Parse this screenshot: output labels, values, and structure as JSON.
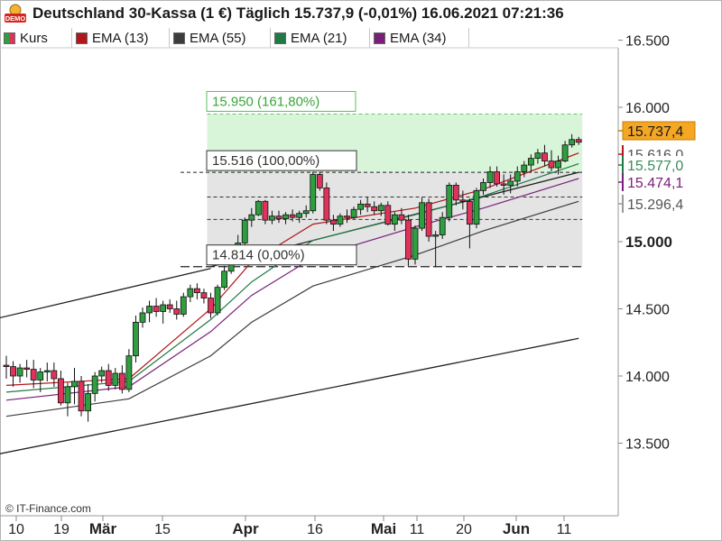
{
  "title": "Deutschland 30-Kassa (1 €) Täglich 15.737,9 (-0,01%) 16.06.2021 07:21:36",
  "badge": "DEMO",
  "copyright": "© IT-Finance.com",
  "colors": {
    "up": "#2e9e3e",
    "down": "#e0325a",
    "ema13": "#b0161a",
    "ema55": "#3c3c3c",
    "ema21": "#1f7a45",
    "ema34": "#7a1f78",
    "target_zone": "#d9f5d9",
    "range_zone": "#e4e4e4"
  },
  "legend": [
    {
      "label": "Kurs",
      "icon": "candle-swatch-icon",
      "color": "#2e9e3e"
    },
    {
      "label": "EMA (13)",
      "color": "#b0161a"
    },
    {
      "label": "EMA (55)",
      "color": "#3c3c3c"
    },
    {
      "label": "EMA (21)",
      "color": "#1f7a45"
    },
    {
      "label": "EMA (34)",
      "color": "#7a1f78"
    }
  ],
  "chart_data": {
    "type": "candlestick",
    "y_axis_ticks": [
      "16.500",
      "16.000",
      "15.000",
      "14.500",
      "14.000",
      "13.500"
    ],
    "y_axis_tick_values": [
      16500,
      16000,
      15000,
      14500,
      14000,
      13500
    ],
    "ylim": [
      13300,
      16700
    ],
    "x_axis_ticks": [
      "10",
      "19",
      "Mär",
      "15",
      "Apr",
      "16",
      "Mai",
      "11",
      "20",
      "Jun",
      "11"
    ],
    "x_axis_bold": [
      false,
      false,
      true,
      false,
      true,
      false,
      true,
      false,
      false,
      true,
      false
    ],
    "candles": [
      {
        "o": 14080,
        "h": 14150,
        "l": 13980,
        "c": 14070
      },
      {
        "o": 14070,
        "h": 14110,
        "l": 13920,
        "c": 14000
      },
      {
        "o": 14000,
        "h": 14090,
        "l": 13950,
        "c": 14060
      },
      {
        "o": 14060,
        "h": 14120,
        "l": 13990,
        "c": 14050
      },
      {
        "o": 14050,
        "h": 14120,
        "l": 13910,
        "c": 13970
      },
      {
        "o": 13970,
        "h": 14060,
        "l": 13880,
        "c": 14030
      },
      {
        "o": 14030,
        "h": 14100,
        "l": 13960,
        "c": 14040
      },
      {
        "o": 14040,
        "h": 14100,
        "l": 13920,
        "c": 13980
      },
      {
        "o": 13980,
        "h": 14040,
        "l": 13780,
        "c": 13800
      },
      {
        "o": 13800,
        "h": 13950,
        "l": 13700,
        "c": 13920
      },
      {
        "o": 13920,
        "h": 14060,
        "l": 13790,
        "c": 13960
      },
      {
        "o": 13960,
        "h": 14000,
        "l": 13700,
        "c": 13740
      },
      {
        "o": 13740,
        "h": 13940,
        "l": 13660,
        "c": 13870
      },
      {
        "o": 13870,
        "h": 14030,
        "l": 13810,
        "c": 14000
      },
      {
        "o": 14000,
        "h": 14070,
        "l": 13950,
        "c": 14040
      },
      {
        "o": 14040,
        "h": 14090,
        "l": 13890,
        "c": 13930
      },
      {
        "o": 13930,
        "h": 14060,
        "l": 13900,
        "c": 14020
      },
      {
        "o": 14020,
        "h": 14080,
        "l": 13870,
        "c": 13900
      },
      {
        "o": 13900,
        "h": 14200,
        "l": 13880,
        "c": 14150
      },
      {
        "o": 14150,
        "h": 14450,
        "l": 14100,
        "c": 14400
      },
      {
        "o": 14400,
        "h": 14510,
        "l": 14360,
        "c": 14470
      },
      {
        "o": 14470,
        "h": 14560,
        "l": 14400,
        "c": 14520
      },
      {
        "o": 14520,
        "h": 14580,
        "l": 14440,
        "c": 14480
      },
      {
        "o": 14480,
        "h": 14560,
        "l": 14390,
        "c": 14530
      },
      {
        "o": 14530,
        "h": 14570,
        "l": 14470,
        "c": 14500
      },
      {
        "o": 14500,
        "h": 14560,
        "l": 14420,
        "c": 14460
      },
      {
        "o": 14460,
        "h": 14620,
        "l": 14440,
        "c": 14590
      },
      {
        "o": 14590,
        "h": 14680,
        "l": 14550,
        "c": 14650
      },
      {
        "o": 14650,
        "h": 14690,
        "l": 14570,
        "c": 14620
      },
      {
        "o": 14620,
        "h": 14650,
        "l": 14540,
        "c": 14580
      },
      {
        "o": 14580,
        "h": 14620,
        "l": 14430,
        "c": 14470
      },
      {
        "o": 14470,
        "h": 14680,
        "l": 14450,
        "c": 14660
      },
      {
        "o": 14660,
        "h": 14820,
        "l": 14640,
        "c": 14780
      },
      {
        "o": 14780,
        "h": 14970,
        "l": 14760,
        "c": 14940
      },
      {
        "o": 14940,
        "h": 15050,
        "l": 14900,
        "c": 14990
      },
      {
        "o": 14990,
        "h": 15180,
        "l": 14970,
        "c": 15160
      },
      {
        "o": 15160,
        "h": 15250,
        "l": 15110,
        "c": 15200
      },
      {
        "o": 15200,
        "h": 15310,
        "l": 15190,
        "c": 15300
      },
      {
        "o": 15300,
        "h": 15310,
        "l": 15130,
        "c": 15160
      },
      {
        "o": 15160,
        "h": 15230,
        "l": 15130,
        "c": 15190
      },
      {
        "o": 15190,
        "h": 15230,
        "l": 15140,
        "c": 15170
      },
      {
        "o": 15170,
        "h": 15220,
        "l": 15130,
        "c": 15200
      },
      {
        "o": 15200,
        "h": 15240,
        "l": 15150,
        "c": 15180
      },
      {
        "o": 15180,
        "h": 15230,
        "l": 15140,
        "c": 15210
      },
      {
        "o": 15210,
        "h": 15270,
        "l": 15180,
        "c": 15230
      },
      {
        "o": 15230,
        "h": 15520,
        "l": 15210,
        "c": 15500
      },
      {
        "o": 15500,
        "h": 15520,
        "l": 15380,
        "c": 15400
      },
      {
        "o": 15400,
        "h": 15440,
        "l": 15130,
        "c": 15160
      },
      {
        "o": 15160,
        "h": 15200,
        "l": 15080,
        "c": 15130
      },
      {
        "o": 15130,
        "h": 15210,
        "l": 15110,
        "c": 15190
      },
      {
        "o": 15190,
        "h": 15240,
        "l": 15140,
        "c": 15180
      },
      {
        "o": 15180,
        "h": 15260,
        "l": 15170,
        "c": 15240
      },
      {
        "o": 15240,
        "h": 15310,
        "l": 15200,
        "c": 15280
      },
      {
        "o": 15280,
        "h": 15330,
        "l": 15220,
        "c": 15260
      },
      {
        "o": 15260,
        "h": 15300,
        "l": 15200,
        "c": 15230
      },
      {
        "o": 15230,
        "h": 15290,
        "l": 15190,
        "c": 15270
      },
      {
        "o": 15270,
        "h": 15300,
        "l": 15120,
        "c": 15130
      },
      {
        "o": 15130,
        "h": 15220,
        "l": 15080,
        "c": 15200
      },
      {
        "o": 15200,
        "h": 15250,
        "l": 15130,
        "c": 15160
      },
      {
        "o": 15160,
        "h": 15200,
        "l": 14820,
        "c": 14870
      },
      {
        "o": 14870,
        "h": 15120,
        "l": 14830,
        "c": 15100
      },
      {
        "o": 15100,
        "h": 15330,
        "l": 15080,
        "c": 15290
      },
      {
        "o": 15290,
        "h": 15320,
        "l": 15000,
        "c": 15040
      },
      {
        "o": 15040,
        "h": 15080,
        "l": 14810,
        "c": 15050
      },
      {
        "o": 15050,
        "h": 15220,
        "l": 15020,
        "c": 15180
      },
      {
        "o": 15180,
        "h": 15440,
        "l": 15150,
        "c": 15420
      },
      {
        "o": 15420,
        "h": 15440,
        "l": 15270,
        "c": 15310
      },
      {
        "o": 15310,
        "h": 15380,
        "l": 15240,
        "c": 15300
      },
      {
        "o": 15300,
        "h": 15320,
        "l": 14950,
        "c": 15130
      },
      {
        "o": 15130,
        "h": 15400,
        "l": 15100,
        "c": 15380
      },
      {
        "o": 15380,
        "h": 15470,
        "l": 15350,
        "c": 15440
      },
      {
        "o": 15440,
        "h": 15560,
        "l": 15400,
        "c": 15520
      },
      {
        "o": 15520,
        "h": 15560,
        "l": 15410,
        "c": 15430
      },
      {
        "o": 15430,
        "h": 15500,
        "l": 15350,
        "c": 15420
      },
      {
        "o": 15420,
        "h": 15500,
        "l": 15360,
        "c": 15450
      },
      {
        "o": 15450,
        "h": 15560,
        "l": 15410,
        "c": 15520
      },
      {
        "o": 15520,
        "h": 15600,
        "l": 15480,
        "c": 15570
      },
      {
        "o": 15570,
        "h": 15650,
        "l": 15520,
        "c": 15620
      },
      {
        "o": 15620,
        "h": 15690,
        "l": 15580,
        "c": 15660
      },
      {
        "o": 15660,
        "h": 15720,
        "l": 15560,
        "c": 15600
      },
      {
        "o": 15600,
        "h": 15680,
        "l": 15520,
        "c": 15550
      },
      {
        "o": 15550,
        "h": 15640,
        "l": 15500,
        "c": 15600
      },
      {
        "o": 15600,
        "h": 15750,
        "l": 15590,
        "c": 15720
      },
      {
        "o": 15720,
        "h": 15800,
        "l": 15700,
        "c": 15760
      },
      {
        "o": 15760,
        "h": 15780,
        "l": 15720,
        "c": 15740
      }
    ],
    "ema_series": [
      {
        "name": "EMA (13)",
        "color": "#b0161a",
        "x": [
          0,
          18,
          30,
          36,
          45,
          60,
          70,
          84
        ],
        "y": [
          13930,
          13980,
          14500,
          14850,
          15130,
          15250,
          15390,
          15660
        ]
      },
      {
        "name": "EMA (21)",
        "color": "#1f7a45",
        "x": [
          0,
          18,
          30,
          36,
          45,
          60,
          70,
          84
        ],
        "y": [
          13880,
          13960,
          14420,
          14700,
          15010,
          15200,
          15340,
          15580
        ]
      },
      {
        "name": "EMA (34)",
        "color": "#7a1f78",
        "x": [
          0,
          18,
          30,
          36,
          45,
          60,
          70,
          84
        ],
        "y": [
          13820,
          13920,
          14330,
          14600,
          14880,
          15110,
          15250,
          15470
        ]
      },
      {
        "name": "EMA (55)",
        "color": "#3c3c3c",
        "x": [
          0,
          18,
          30,
          36,
          45,
          60,
          70,
          84
        ],
        "y": [
          13700,
          13830,
          14150,
          14400,
          14670,
          14900,
          15080,
          15300
        ]
      }
    ],
    "trend_lines": [
      {
        "name": "upper-trend-line",
        "from": [
          -8,
          14350
        ],
        "to": [
          30,
          14800
        ]
      },
      {
        "name": "support-line",
        "from": [
          30,
          14814
        ],
        "to": [
          84,
          15516
        ]
      },
      {
        "name": "lower-trend-line",
        "from": [
          -8,
          13350
        ],
        "to": [
          84,
          14280
        ]
      }
    ],
    "fibonacci": {
      "start_index": 30,
      "levels": [
        {
          "label": "15.950 (161,80%)",
          "value": 15950
        },
        {
          "label": "15.516 (100,00%)",
          "value": 15516
        },
        {
          "label": "14.814 (0,00%)",
          "value": 14814
        }
      ],
      "intermediate_levels": [
        15332,
        15165
      ]
    },
    "price_tags": [
      {
        "label": "15.737,4",
        "value": 15737.4,
        "style": "current"
      },
      {
        "label": "15.616,0",
        "value": 15616,
        "style": "ema13"
      },
      {
        "label": "15.577,0",
        "value": 15577,
        "style": "ema21"
      },
      {
        "label": "15.474,1",
        "value": 15474.1,
        "style": "ema34"
      },
      {
        "label": "15.296,4",
        "value": 15296.4,
        "style": "ema55"
      }
    ]
  }
}
